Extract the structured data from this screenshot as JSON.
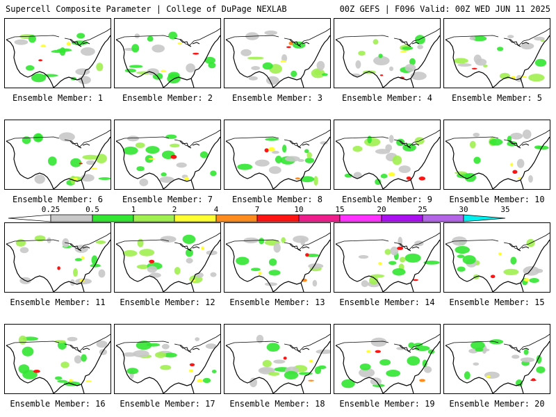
{
  "header": {
    "title_left": "Supercell Composite Parameter | College of DuPage NEXLAB",
    "title_right": "00Z GEFS | F096 Valid: 00Z WED JUN 11 2025"
  },
  "panels": [
    {
      "label": "Ensemble Member: 1",
      "member": 1
    },
    {
      "label": "Ensemble Member: 2",
      "member": 2
    },
    {
      "label": "Ensemble Member: 3",
      "member": 3
    },
    {
      "label": "Ensemble Member: 4",
      "member": 4
    },
    {
      "label": "Ensemble Member: 5",
      "member": 5
    },
    {
      "label": "Ensemble Member: 6",
      "member": 6
    },
    {
      "label": "Ensemble Member: 7",
      "member": 7
    },
    {
      "label": "Ensemble Member: 8",
      "member": 8
    },
    {
      "label": "Ensemble Member: 9",
      "member": 9
    },
    {
      "label": "Ensemble Member: 10",
      "member": 10
    },
    {
      "label": "Ensemble Member: 11",
      "member": 11
    },
    {
      "label": "Ensemble Member: 12",
      "member": 12
    },
    {
      "label": "Ensemble Member: 13",
      "member": 13
    },
    {
      "label": "Ensemble Member: 14",
      "member": 14
    },
    {
      "label": "Ensemble Member: 15",
      "member": 15
    },
    {
      "label": "Ensemble Member: 16",
      "member": 16
    },
    {
      "label": "Ensemble Member: 17",
      "member": 17
    },
    {
      "label": "Ensemble Member: 18",
      "member": 18
    },
    {
      "label": "Ensemble Member: 19",
      "member": 19
    },
    {
      "label": "Ensemble Member: 20",
      "member": 20
    }
  ],
  "colorbar": {
    "ticks": [
      "0.25",
      "0.5",
      "1",
      "2",
      "4",
      "7",
      "10",
      "15",
      "20",
      "25",
      "30",
      "35"
    ],
    "colors": [
      "#ffffff",
      "#c8c8c8",
      "#32e632",
      "#a0f050",
      "#ffff32",
      "#ff8c1e",
      "#ff1414",
      "#f01e8c",
      "#ff32ff",
      "#aa10f0",
      "#b464e6",
      "#00f0f0"
    ]
  }
}
